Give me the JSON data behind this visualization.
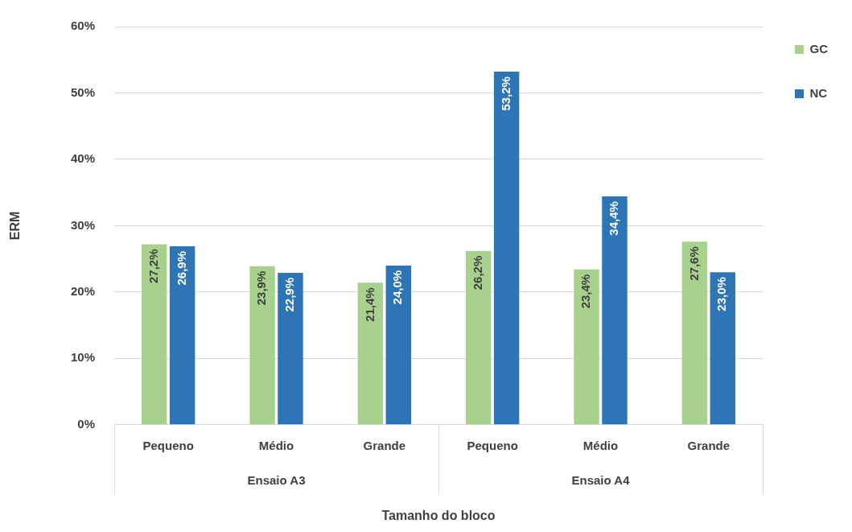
{
  "chart_data": {
    "type": "bar",
    "xlabel": "Tamanho do bloco",
    "ylabel": "ERM",
    "categories": [
      "Pequeno",
      "Médio",
      "Grande",
      "Pequeno",
      "Médio",
      "Grande"
    ],
    "series": [
      {
        "name": "GC",
        "color": "#a9d18e",
        "values": [
          27.2,
          23.9,
          21.4,
          26.2,
          23.4,
          27.6
        ],
        "value_labels": [
          "27,2%",
          "23,9%",
          "21,4%",
          "26,2%",
          "23,4%",
          "27,6%"
        ]
      },
      {
        "name": "NC",
        "color": "#2e75b6",
        "values": [
          26.9,
          22.9,
          24.0,
          53.2,
          34.4,
          23.0
        ],
        "value_labels": [
          "26,9%",
          "22,9%",
          "24,0%",
          "53,2%",
          "34,4%",
          "23,0%"
        ]
      }
    ],
    "ylim": [
      0,
      60
    ],
    "yticks": [
      {
        "value": 0,
        "label": "0%"
      },
      {
        "value": 10,
        "label": "10%"
      },
      {
        "value": 20,
        "label": "20%"
      },
      {
        "value": 30,
        "label": "30%"
      },
      {
        "value": 40,
        "label": "40%"
      },
      {
        "value": 50,
        "label": "50%"
      },
      {
        "value": 60,
        "label": "60%"
      }
    ],
    "annotations": [
      "Ensaio A3",
      "Ensaio A4"
    ],
    "grid": "y",
    "legend": "right"
  }
}
